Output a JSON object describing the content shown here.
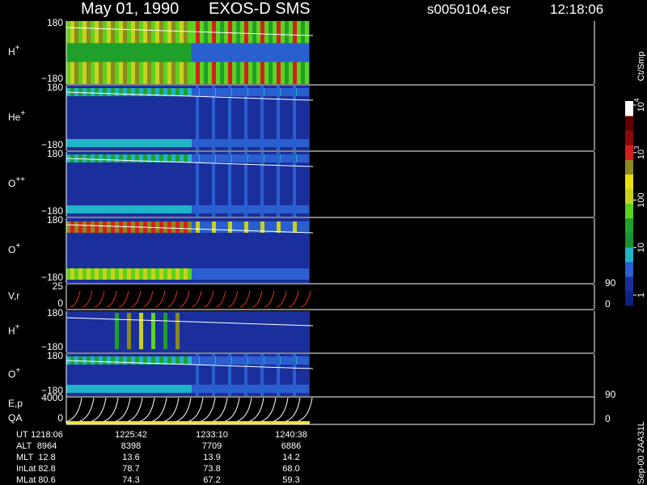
{
  "header": {
    "date": "May 01, 1990",
    "instrument": "EXOS-D SMS",
    "file": "s0050104.esr",
    "time": "12:18:06"
  },
  "panels": [
    {
      "label": {
        "base": "H",
        "sup": "+"
      },
      "top": "180",
      "bottom": "−180"
    },
    {
      "label": {
        "base": "He",
        "sup": "+"
      },
      "top": "180",
      "bottom": "−180"
    },
    {
      "label": {
        "base": "O",
        "sup": "++"
      },
      "top": "180",
      "bottom": "−180"
    },
    {
      "label": {
        "base": "O",
        "sup": "+"
      },
      "top": "180",
      "bottom": "−180"
    },
    {
      "label": {
        "base": "V,r"
      },
      "top": "25",
      "bottom": "0",
      "right_top": "90",
      "right_bottom": "0"
    },
    {
      "label": {
        "base": "H",
        "sup": "+"
      },
      "top": "180",
      "bottom": "−180"
    },
    {
      "label": {
        "base": "O",
        "sup": "+"
      },
      "top": "180",
      "bottom": "−180"
    },
    {
      "label": {
        "base": "E,p"
      },
      "label2": "QA",
      "top": "4000",
      "bottom": "0",
      "right_top": "90",
      "right_bottom": "0"
    }
  ],
  "colorbar": {
    "unit": "Ct/Smp",
    "log": true,
    "ticks": [
      1,
      10,
      100,
      {
        "value": 1000,
        "label": "10",
        "exponent": "3"
      },
      {
        "value": 10000,
        "label": "10",
        "exponent": "4"
      }
    ]
  },
  "footer": {
    "rows": [
      [
        "UT",
        "1218:06",
        "1225:42",
        "1233:10",
        "1240:38"
      ],
      [
        "ALT",
        "8964",
        "8398",
        "7709",
        "6886"
      ],
      [
        "MLT",
        "12.8",
        "13.6",
        "13.9",
        "14.2"
      ],
      [
        "InLat",
        "82.8",
        "78.7",
        "73.8",
        "68.0"
      ],
      [
        "MLat",
        "80.6",
        "74.3",
        "67.2",
        "59.3"
      ]
    ]
  },
  "stamp": "Sep-00  2AA31L"
}
